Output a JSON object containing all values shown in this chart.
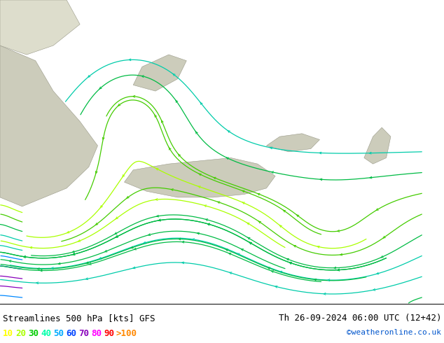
{
  "title_left": "Streamlines 500 hPa [kts] GFS",
  "title_right": "Th 26-09-2024 06:00 UTC (12+42)",
  "watermark": "©weatheronline.co.uk",
  "legend_values": [
    "10",
    "20",
    "30",
    "40",
    "50",
    "60",
    "70",
    "80",
    "90",
    ">100"
  ],
  "legend_colors": [
    "#ffff00",
    "#aaff00",
    "#00cc00",
    "#00ffaa",
    "#00aaff",
    "#0044ff",
    "#8800bb",
    "#ff00ff",
    "#ff0000",
    "#ff8800"
  ],
  "bg_color": "#bbee88",
  "sea_color": "#ddddcc",
  "fig_width": 6.34,
  "fig_height": 4.9,
  "dpi": 100
}
